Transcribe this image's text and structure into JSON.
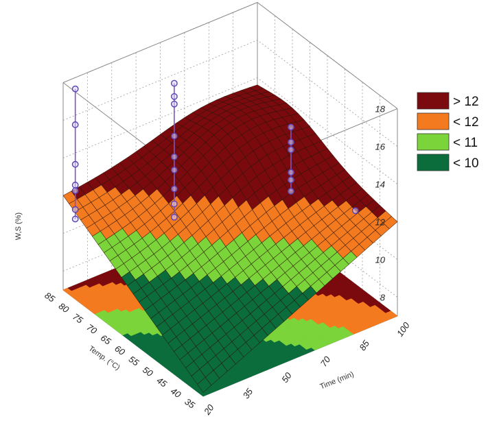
{
  "chart_data": {
    "type": "surface3d",
    "title": "",
    "zlabel": "W,S (%)",
    "xlabel": "Temp. (°C)",
    "ylabel": "Time (min)",
    "x_ticks": [
      "35",
      "40",
      "45",
      "50",
      "55",
      "60",
      "65",
      "70",
      "75",
      "80",
      "85"
    ],
    "y_ticks": [
      "20",
      "35",
      "50",
      "70",
      "85",
      "100"
    ],
    "z_ticks": [
      "8",
      "10",
      "12",
      "14",
      "16",
      "18"
    ],
    "xlim": [
      35,
      85
    ],
    "ylim": [
      20,
      100
    ],
    "zlim": [
      7,
      18
    ],
    "grid": true,
    "legend_position": "right",
    "legend": [
      {
        "label": "> 12",
        "color": "#7a0a0e"
      },
      {
        "label": "< 12",
        "color": "#f47a20"
      },
      {
        "label": "< 11",
        "color": "#7bd43a"
      },
      {
        "label": "< 10",
        "color": "#0c6d3c"
      }
    ],
    "surface_fit": {
      "corners": {
        "x35_y20": 7.2,
        "x85_y20": 12.0,
        "x85_y100": 13.2,
        "x35_y100": 12.0
      },
      "peak": {
        "x": 72,
        "y": 78,
        "z": 14.6
      }
    },
    "observations": [
      {
        "x": 80,
        "y": 60,
        "z_points": [
          16.4,
          15.7,
          15.3,
          13.6,
          12.5,
          11.8,
          10.8,
          10.0,
          9.3
        ]
      },
      {
        "x": 85,
        "y": 25,
        "z_points": [
          17.4,
          15.5,
          13.4,
          12.3,
          12.0,
          11.0,
          10.5
        ]
      },
      {
        "x": 60,
        "y": 85,
        "z_points": [
          15.0,
          14.2,
          13.8,
          12.6,
          12.2,
          11.6
        ]
      },
      {
        "x": 50,
        "y": 100,
        "z_points": [
          10.9
        ]
      }
    ]
  }
}
